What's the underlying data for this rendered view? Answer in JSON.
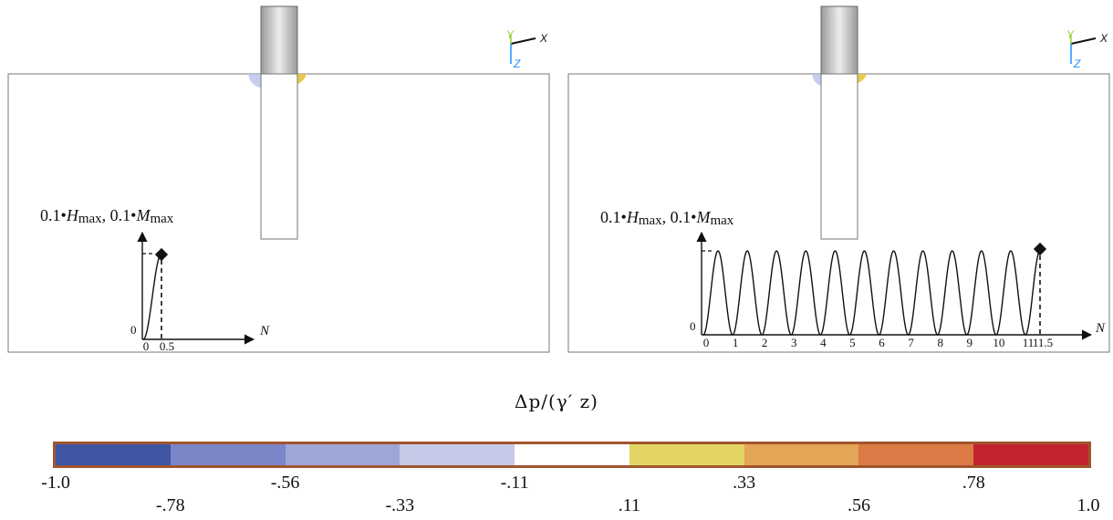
{
  "colors": {
    "soil_border": "#6e6e6e",
    "pile_top_light": "#e8e8e8",
    "pile_top_dark": "#8a8a8a",
    "pressure_negative_tint": "#b8c0ea",
    "pressure_positive_tint": "#e6c43c",
    "triad_y": "#9acd32",
    "triad_z": "#1e90ff",
    "colorbar_border": "#a0552c"
  },
  "panels": [
    {
      "id": "left",
      "triad": {
        "x": "X",
        "y": "Y",
        "z": "Z"
      },
      "load_label": {
        "prefix_h": "0.1•",
        "var_h": "H",
        "sub_h": "max",
        "sep": ", ",
        "prefix_m": "0.1•",
        "var_m": "M",
        "sub_m": "max"
      },
      "axis_label": "N",
      "origin_label": "0",
      "ticks": [
        "0",
        "0.5"
      ],
      "load_cycles": 0.5
    },
    {
      "id": "right",
      "triad": {
        "x": "X",
        "y": "Y",
        "z": "Z"
      },
      "load_label": {
        "prefix_h": "0.1•",
        "var_h": "H",
        "sub_h": "max",
        "sep": ", ",
        "prefix_m": "0.1•",
        "var_m": "M",
        "sub_m": "max"
      },
      "axis_label": "N",
      "origin_label": "0",
      "ticks": [
        "0",
        "1",
        "2",
        "3",
        "4",
        "5",
        "6",
        "7",
        "8",
        "9",
        "10",
        "11",
        "11.5"
      ],
      "load_cycles": 11.5
    }
  ],
  "legend": {
    "title": "Δp/(γ′ z)",
    "colors": [
      "#3f56a3",
      "#7b85c7",
      "#9ea6d6",
      "#c5cae8",
      "#ffffff",
      "#e3d564",
      "#e4a556",
      "#dc7a45",
      "#c2242d"
    ],
    "tick_labels": [
      "-1.0",
      "-.78",
      "-.56",
      "-.33",
      "-.11",
      ".11",
      ".33",
      ".56",
      ".78",
      "1.0"
    ]
  }
}
